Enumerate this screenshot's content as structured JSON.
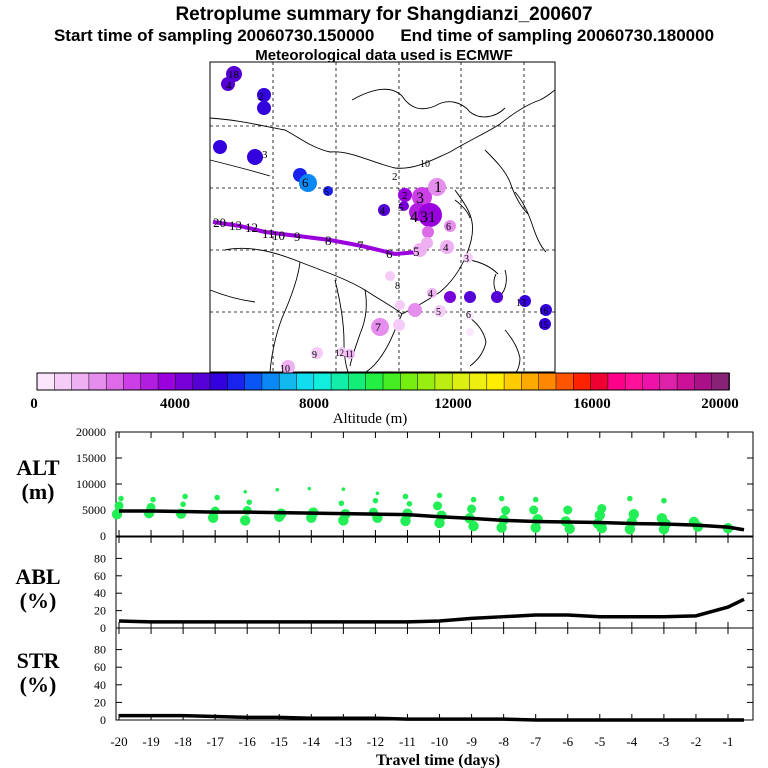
{
  "header": {
    "title": "Retroplume summary for Shangdianzi_200607",
    "start_label": "Start time of sampling 20060730.150000",
    "end_label": "End time of sampling 20060730.180000",
    "met_label": "Meteorological data used is ECMWF"
  },
  "colorbar": {
    "label": "Altitude (m)",
    "ticks": [
      "0",
      "4000",
      "8000",
      "12000",
      "16000",
      "20000"
    ],
    "colors": [
      "#fbe6fb",
      "#f5ccf7",
      "#eeb0f2",
      "#e68eee",
      "#dc6ae9",
      "#cc3fe6",
      "#b21ee0",
      "#9900dd",
      "#7700d8",
      "#5500d5",
      "#3300dd",
      "#1a22ee",
      "#0a55f5",
      "#0a88f5",
      "#10b8ee",
      "#12ddee",
      "#12eedd",
      "#12eeaa",
      "#12ee77",
      "#22ee44",
      "#44ee22",
      "#77ee11",
      "#99ee11",
      "#bbee11",
      "#ddee11",
      "#eeee11",
      "#ffee00",
      "#ffcc00",
      "#ffaa00",
      "#ff8800",
      "#ff5500",
      "#ff2200",
      "#ee0033",
      "#ff0088",
      "#ff1199",
      "#ee11aa",
      "#dd22aa",
      "#cc1199",
      "#aa1188",
      "#882277"
    ]
  },
  "map": {
    "backward_path_labels": [
      "20",
      "13",
      "12",
      "11",
      "10",
      "9",
      "8",
      "7",
      "6",
      "5"
    ],
    "cluster_labels_north": [
      "18",
      "4",
      "2",
      "3",
      "6",
      "5",
      "4",
      "2",
      "10",
      "1",
      "3",
      "2",
      "5",
      "4",
      "31",
      "6",
      "4"
    ],
    "cluster_labels_south": [
      "3",
      "4",
      "5",
      "6",
      "7",
      "8",
      "9",
      "10",
      "12",
      "11",
      "13",
      "16",
      "15"
    ]
  },
  "chart_data": [
    {
      "type": "line",
      "panel": "ALT",
      "ylabel": "ALT (m)",
      "ylim": [
        0,
        20000
      ],
      "yticks": [
        0,
        5000,
        10000,
        15000,
        20000
      ],
      "x": [
        -20,
        -19,
        -18,
        -17,
        -16,
        -15,
        -14,
        -13,
        -12,
        -11,
        -10,
        -9,
        -8,
        -7,
        -6,
        -5,
        -4,
        -3,
        -2,
        -1,
        -0.5
      ],
      "values": [
        4800,
        4800,
        4700,
        4600,
        4600,
        4500,
        4400,
        4300,
        4200,
        4100,
        3700,
        3400,
        3000,
        2800,
        2700,
        2600,
        2400,
        2300,
        2100,
        1700,
        1200
      ],
      "scatter_points": [
        [
          -20,
          4200
        ],
        [
          -20,
          5800
        ],
        [
          -20,
          7200
        ],
        [
          -19,
          4400
        ],
        [
          -19,
          5500
        ],
        [
          -19,
          7000
        ],
        [
          -18,
          4300
        ],
        [
          -18,
          6100
        ],
        [
          -18,
          7600
        ],
        [
          -17,
          3500
        ],
        [
          -17,
          4800
        ],
        [
          -17,
          7400
        ],
        [
          -16,
          3000
        ],
        [
          -16,
          4900
        ],
        [
          -16,
          6500
        ],
        [
          -16,
          8500
        ],
        [
          -15,
          3700
        ],
        [
          -15,
          4300
        ],
        [
          -15,
          8900
        ],
        [
          -14,
          3500
        ],
        [
          -14,
          4500
        ],
        [
          -14,
          9100
        ],
        [
          -13,
          3000
        ],
        [
          -13,
          4200
        ],
        [
          -13,
          6300
        ],
        [
          -13,
          9000
        ],
        [
          -12,
          3500
        ],
        [
          -12,
          4600
        ],
        [
          -12,
          6800
        ],
        [
          -12,
          8200
        ],
        [
          -11,
          2900
        ],
        [
          -11,
          4300
        ],
        [
          -11,
          6200
        ],
        [
          -11,
          7600
        ],
        [
          -10,
          2500
        ],
        [
          -10,
          3900
        ],
        [
          -10,
          5800
        ],
        [
          -10,
          7800
        ],
        [
          -9,
          1900
        ],
        [
          -9,
          3400
        ],
        [
          -9,
          5200
        ],
        [
          -9,
          7000
        ],
        [
          -8,
          1600
        ],
        [
          -8,
          3100
        ],
        [
          -8,
          4900
        ],
        [
          -8,
          7200
        ],
        [
          -7,
          1600
        ],
        [
          -7,
          3200
        ],
        [
          -7,
          5000
        ],
        [
          -7,
          7000
        ],
        [
          -6,
          1400
        ],
        [
          -6,
          2800
        ],
        [
          -6,
          5000
        ],
        [
          -5,
          1500
        ],
        [
          -5,
          2400
        ],
        [
          -5,
          4000
        ],
        [
          -5,
          5300
        ],
        [
          -4,
          1300
        ],
        [
          -4,
          2700
        ],
        [
          -4,
          4200
        ],
        [
          -4,
          7200
        ],
        [
          -3,
          1300
        ],
        [
          -3,
          2300
        ],
        [
          -3,
          3400
        ],
        [
          -3,
          6800
        ],
        [
          -2,
          1800
        ],
        [
          -2,
          2700
        ],
        [
          -1,
          1500
        ]
      ],
      "point_color": "#22ee55"
    },
    {
      "type": "line",
      "panel": "ABL",
      "ylabel": "ABL (%)",
      "ylim": [
        0,
        100
      ],
      "yticks": [
        0,
        20,
        40,
        60,
        80
      ],
      "x": [
        -20,
        -19,
        -18,
        -17,
        -16,
        -15,
        -14,
        -13,
        -12,
        -11,
        -10,
        -9,
        -8,
        -7,
        -6,
        -5,
        -4,
        -3,
        -2,
        -1,
        -0.5
      ],
      "values": [
        8,
        7,
        7,
        7,
        7,
        7,
        7,
        7,
        7,
        7,
        8,
        11,
        13,
        15,
        15,
        13,
        13,
        13,
        14,
        24,
        33
      ]
    },
    {
      "type": "line",
      "panel": "STR",
      "ylabel": "STR (%)",
      "ylim": [
        0,
        100
      ],
      "yticks": [
        0,
        20,
        40,
        60,
        80
      ],
      "x": [
        -20,
        -19,
        -18,
        -17,
        -16,
        -15,
        -14,
        -13,
        -12,
        -11,
        -10,
        -9,
        -8,
        -7,
        -6,
        -5,
        -4,
        -3,
        -2,
        -1,
        -0.5
      ],
      "values": [
        5,
        5,
        5,
        4,
        3,
        3,
        2,
        2,
        2,
        1,
        1,
        1,
        1,
        0,
        0,
        0,
        0,
        0,
        0,
        0,
        0
      ]
    }
  ],
  "xaxis": {
    "label": "Travel time (days)",
    "ticks": [
      "-20",
      "-19",
      "-18",
      "-17",
      "-16",
      "-15",
      "-14",
      "-13",
      "-12",
      "-11",
      "-10",
      "-9",
      "-8",
      "-7",
      "-6",
      "-5",
      "-4",
      "-3",
      "-2",
      "-1"
    ]
  },
  "panels": {
    "alt": {
      "name": "ALT",
      "unit": "(m)"
    },
    "abl": {
      "name": "ABL",
      "unit": "(%)"
    },
    "str": {
      "name": "STR",
      "unit": "(%)"
    }
  }
}
